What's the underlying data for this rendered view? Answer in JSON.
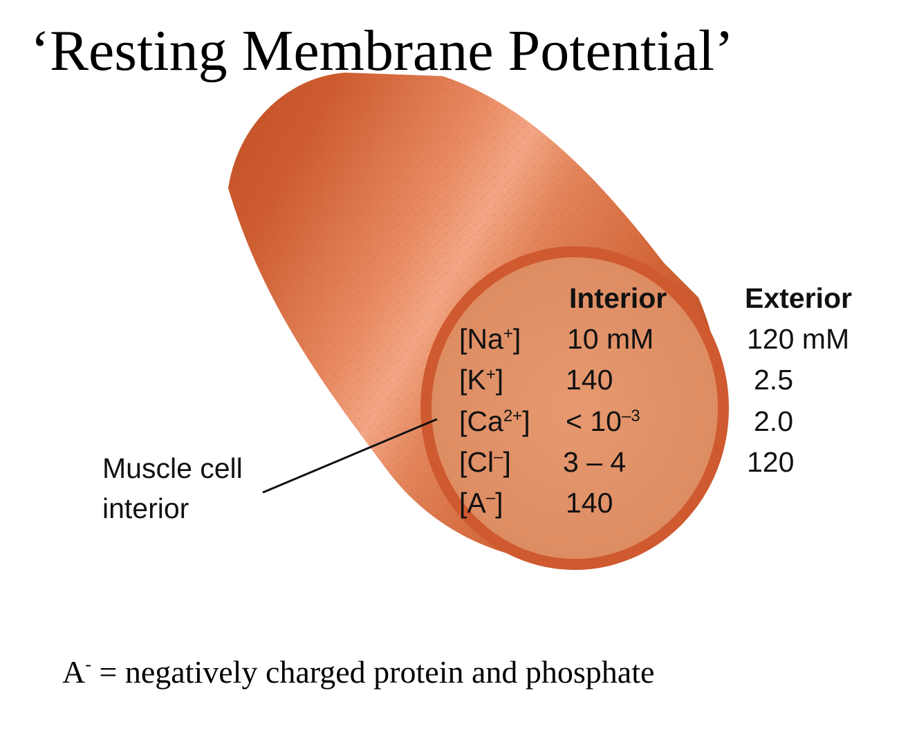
{
  "title": "‘Resting Membrane Potential’",
  "table": {
    "interior_header": "Interior",
    "exterior_header": "Exterior",
    "rows": [
      {
        "ion_base": "[Na",
        "ion_charge": "+",
        "ion_close": "]",
        "interior": "10 mM",
        "exterior": "120 mM"
      },
      {
        "ion_base": "[K",
        "ion_charge": "+",
        "ion_close": "]",
        "interior": "140",
        "exterior": "2.5"
      },
      {
        "ion_base": "[Ca",
        "ion_charge": "2+",
        "ion_close": "]",
        "interior_base": "< 10",
        "interior_exp": "–3",
        "exterior": "2.0"
      },
      {
        "ion_base": "[Cl",
        "ion_charge": "–",
        "ion_close": "]",
        "interior": "3 – 4",
        "exterior": "120"
      },
      {
        "ion_base": "[A",
        "ion_charge": "–",
        "ion_close": "]",
        "interior": "140",
        "exterior": ""
      }
    ]
  },
  "callout": {
    "line1": "Muscle cell",
    "line2": "interior"
  },
  "footnote": {
    "base": "A",
    "charge": "-",
    "text": " = negatively charged protein  and phosphate"
  },
  "colors": {
    "cylinder_body": "#d4683c",
    "cylinder_highlight": "#f0a07c",
    "cylinder_shadow": "#b84a22",
    "end_face_fill": "#e0916a",
    "end_face_rim": "#cf5a30"
  }
}
